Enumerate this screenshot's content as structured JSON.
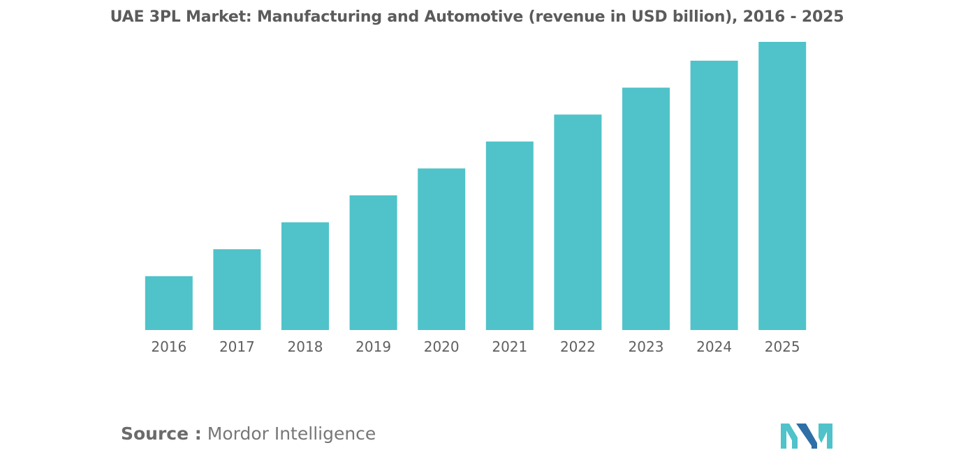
{
  "chart_data": {
    "type": "bar",
    "title": "UAE 3PL Market: Manufacturing and Automotive (revenue in USD billion), 2016 - 2025",
    "categories": [
      "2016",
      "2017",
      "2018",
      "2019",
      "2020",
      "2021",
      "2022",
      "2023",
      "2024",
      "2025"
    ],
    "values": [
      1.0,
      1.5,
      2.0,
      2.5,
      3.0,
      3.5,
      4.0,
      4.5,
      5.0,
      5.35
    ],
    "xlabel": "",
    "ylabel": "",
    "ylim": [
      0,
      5.35
    ],
    "grid": false,
    "legend": "none",
    "bar_color": "#4fc3c9"
  },
  "source": {
    "prefix": "Source :",
    "name": "Mordor Intelligence"
  },
  "logo": {
    "colors": [
      "#2f6fa7",
      "#4fc3c9"
    ]
  }
}
